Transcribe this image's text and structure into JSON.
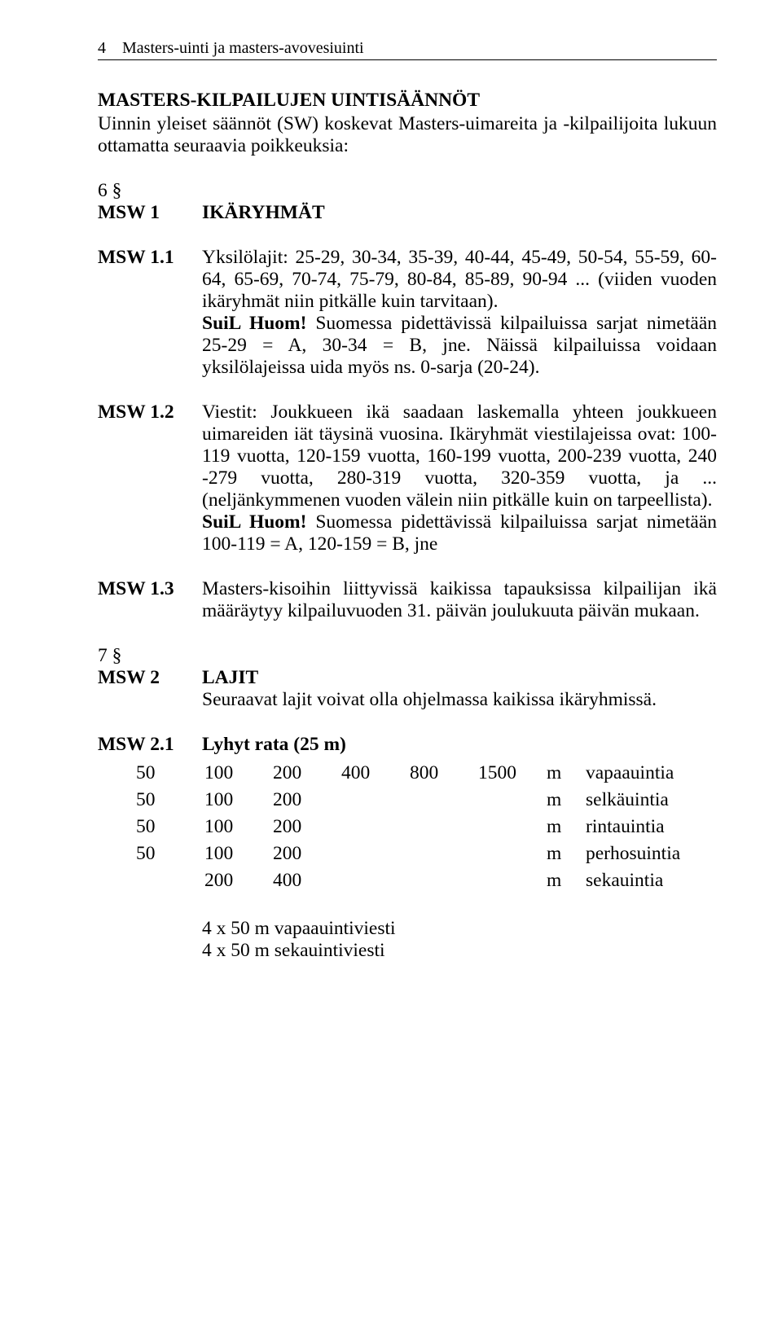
{
  "header": {
    "page_num": "4",
    "running_title": "Masters-uinti ja masters-avovesiuinti"
  },
  "title": "MASTERS-KILPAILUJEN UINTISÄÄNNÖT",
  "intro": "Uinnin yleiset säännöt (SW) koskevat Masters-uimareita ja -kilpailijoita lukuun ottamatta seuraavia poikkeuksia:",
  "sec6": "6 §",
  "msw1": {
    "label": "MSW 1",
    "heading": "IKÄRYHMÄT"
  },
  "msw1_1": {
    "label": "MSW 1.1",
    "p1": "Yksilölajit: 25-29, 30-34, 35-39, 40-44, 45-49, 50-54, 55-59, 60-64, 65-69, 70-74, 75-79, 80-84, 85-89, 90-94 ... (viiden vuoden ikäryhmät niin pitkälle kuin tarvitaan).",
    "suil": "SuiL Huom!",
    "p2": " Suomessa pidettävissä kilpailuissa sarjat nimetään 25-29 = A, 30-34 = B, jne. Näissä kilpailuissa voidaan yksilölajeissa uida myös ns. 0-sarja (20-24)."
  },
  "msw1_2": {
    "label": "MSW 1.2",
    "p1": "Viestit: Joukkueen ikä saadaan laskemalla yhteen joukkueen uimareiden iät täysinä vuosina. Ikäryhmät viestilajeissa ovat: 100-119 vuotta, 120-159 vuotta, 160-199 vuotta, 200-239 vuotta, 240 -279 vuotta, 280-319 vuotta, 320-359 vuotta, ja ... (neljänkymmenen vuoden välein niin pitkälle kuin on tarpeellista).",
    "suil": "SuiL Huom!",
    "p2": " Suomessa pidettävissä kilpailuissa sarjat nimetään 100-119 = A, 120-159 = B, jne"
  },
  "msw1_3": {
    "label": "MSW 1.3",
    "p1": "Masters-kisoihin liittyvissä kaikissa tapauksissa kilpailijan ikä määräytyy kilpailuvuoden 31. päivän joulukuuta päivän mukaan."
  },
  "sec7": "7 §",
  "msw2": {
    "label": "MSW 2",
    "heading": "LAJIT",
    "p1": "Seuraavat lajit voivat olla ohjelmassa kaikissa ikäryhmissä."
  },
  "msw2_1": {
    "label": "MSW 2.1",
    "heading": "Lyhyt rata (25 m)",
    "rows": [
      {
        "nums": [
          "50",
          "100",
          "200",
          "400",
          "800",
          "1500"
        ],
        "unit": "m",
        "stroke": "vapaauintia"
      },
      {
        "nums": [
          "50",
          "100",
          "200"
        ],
        "unit": "m",
        "stroke": "selkäuintia"
      },
      {
        "nums": [
          "50",
          "100",
          "200"
        ],
        "unit": "m",
        "stroke": "rintauintia"
      },
      {
        "nums": [
          "50",
          "100",
          "200"
        ],
        "unit": "m",
        "stroke": "perhosuintia"
      },
      {
        "nums": [
          "",
          "200",
          "400"
        ],
        "unit": "m",
        "stroke": "sekauintia"
      }
    ]
  },
  "relays": {
    "r1": "4 x 50 m vapaauintiviesti",
    "r2": "4 x 50 m sekauintiviesti"
  }
}
